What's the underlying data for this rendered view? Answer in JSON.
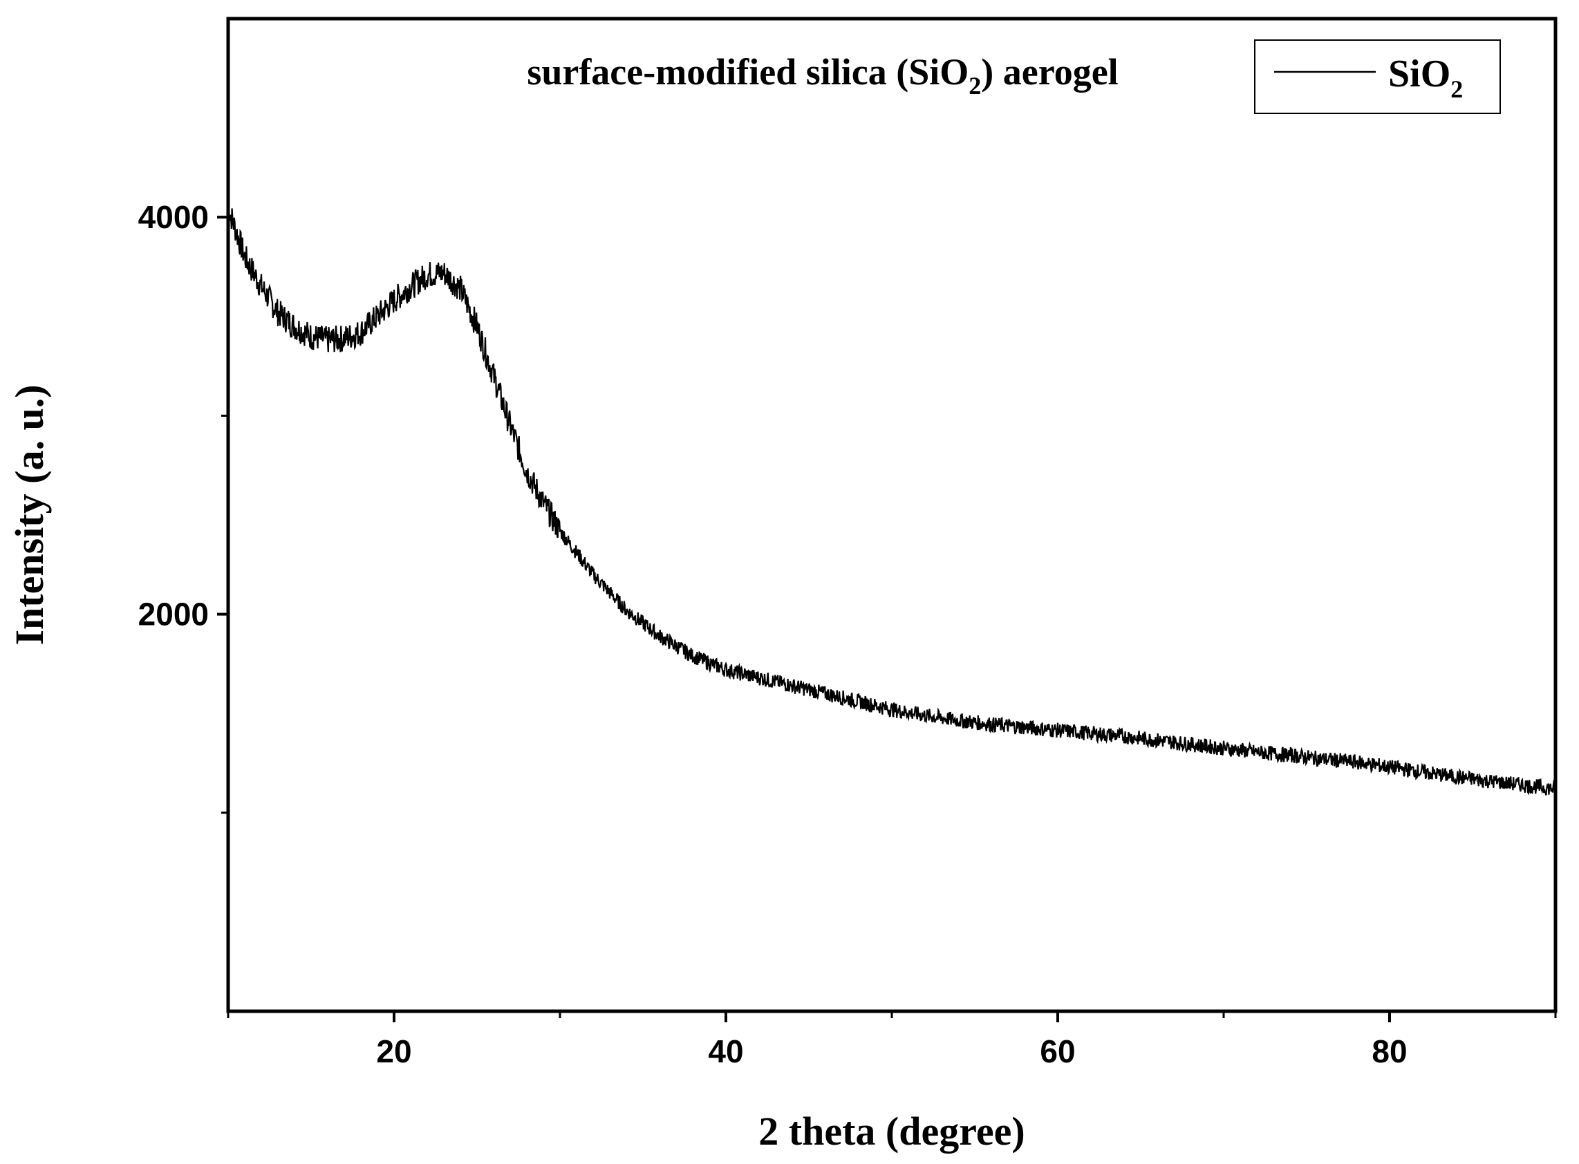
{
  "chart_data": {
    "type": "line",
    "title_parts": {
      "pre": "surface-modified silica (SiO",
      "sub": "2",
      "post": ") aerogel"
    },
    "xlabel": "2 theta (degree)",
    "ylabel": "Intensity (a. u.)",
    "xlim": [
      10,
      90
    ],
    "ylim": [
      0,
      5000
    ],
    "x_ticks": [
      20,
      40,
      60,
      80
    ],
    "x_minor_ticks": [
      10,
      30,
      50,
      70,
      90
    ],
    "y_ticks": [
      2000,
      4000
    ],
    "y_minor_ticks": [
      1000,
      3000
    ],
    "grid": false,
    "legend_position": "top-right",
    "colors": {
      "line": "#000000",
      "axis": "#000000"
    },
    "series": [
      {
        "legend": {
          "pre": "SiO",
          "sub": "2"
        },
        "x": [
          10,
          11,
          12,
          13,
          14,
          15,
          16,
          17,
          18,
          19,
          20,
          21,
          22,
          23,
          24,
          25,
          26,
          27,
          28,
          29,
          30,
          32,
          34,
          36,
          38,
          40,
          42,
          44,
          46,
          48,
          50,
          52,
          54,
          56,
          58,
          60,
          62,
          64,
          66,
          68,
          70,
          72,
          74,
          76,
          78,
          80,
          82,
          84,
          86,
          88,
          90
        ],
        "y": [
          4050,
          3800,
          3650,
          3520,
          3450,
          3400,
          3380,
          3390,
          3420,
          3500,
          3580,
          3650,
          3710,
          3720,
          3640,
          3450,
          3200,
          2950,
          2720,
          2560,
          2420,
          2200,
          2020,
          1890,
          1790,
          1720,
          1680,
          1640,
          1600,
          1560,
          1520,
          1490,
          1465,
          1445,
          1430,
          1415,
          1400,
          1385,
          1365,
          1345,
          1325,
          1305,
          1290,
          1270,
          1255,
          1230,
          1205,
          1180,
          1160,
          1140,
          1120
        ]
      }
    ]
  }
}
